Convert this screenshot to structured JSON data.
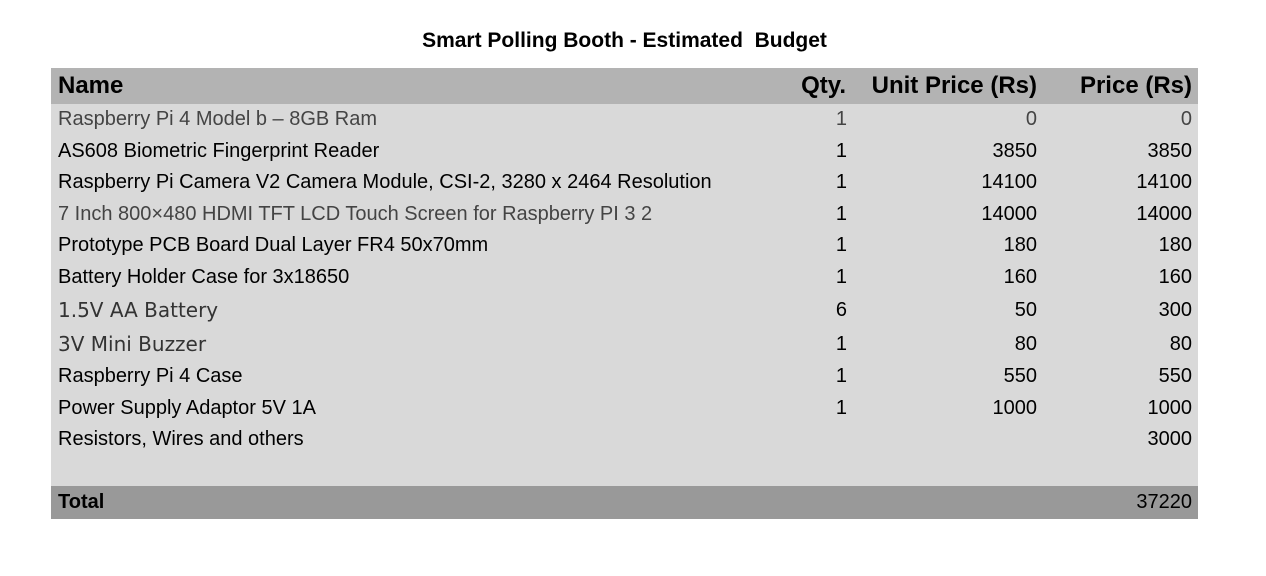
{
  "title": "Smart Polling Booth - Estimated  Budget",
  "columns": {
    "name": "Name",
    "qty": "Qty.",
    "unit_price": "Unit Price (Rs)",
    "price": "Price (Rs)"
  },
  "rows": [
    {
      "name": "Raspberry Pi 4 Model b – 8GB Ram",
      "qty": "1",
      "unit_price": "0",
      "price": "0"
    },
    {
      "name": "AS608 Biometric Fingerprint Reader",
      "qty": "1",
      "unit_price": "3850",
      "price": "3850"
    },
    {
      "name": "Raspberry Pi Camera V2 Camera Module, CSI-2, 3280 x 2464 Resolution",
      "qty": "1",
      "unit_price": "14100",
      "price": "14100"
    },
    {
      "name": "7 Inch 800×480 HDMI TFT LCD Touch Screen for Raspberry PI 3 2",
      "qty": "1",
      "unit_price": "14000",
      "price": "14000"
    },
    {
      "name": "Prototype PCB Board Dual Layer FR4 50x70mm",
      "qty": "1",
      "unit_price": "180",
      "price": "180"
    },
    {
      "name": "Battery Holder Case for 3x18650",
      "qty": "1",
      "unit_price": "160",
      "price": "160"
    },
    {
      "name": "1.5V AA Battery",
      "qty": "6",
      "unit_price": "50",
      "price": "300"
    },
    {
      "name": "3V Mini Buzzer",
      "qty": "1",
      "unit_price": "80",
      "price": "80"
    },
    {
      "name": "Raspberry Pi 4 Case",
      "qty": "1",
      "unit_price": "550",
      "price": "550"
    },
    {
      "name": "Power Supply Adaptor 5V 1A",
      "qty": "1",
      "unit_price": "1000",
      "price": "1000"
    },
    {
      "name": "Resistors, Wires and others",
      "qty": "",
      "unit_price": "",
      "price": "3000"
    }
  ],
  "total": {
    "label": "Total",
    "price": "37220"
  }
}
